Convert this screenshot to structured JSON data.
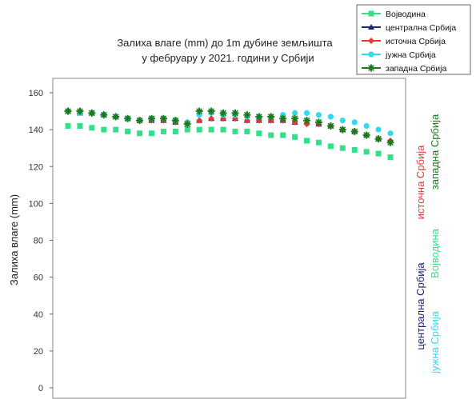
{
  "chart_data": {
    "type": "scatter",
    "title_line1": "Залиха влаге (mm) до 1m дубине земљишта",
    "title_line2": "у фебруару у 2021. години у Србији",
    "xlabel": "",
    "ylabel": "Залиха влаге (mm)",
    "ylim": [
      0,
      160
    ],
    "yticks": [
      0,
      20,
      40,
      60,
      80,
      100,
      120,
      140,
      160
    ],
    "x_days": 28,
    "grid": false,
    "legend_position": "top-right",
    "bands": [
      {
        "from": 0,
        "to": 30,
        "color": "#ff9a3c"
      },
      {
        "from": 30,
        "to": 55,
        "color": "#ffcc99"
      },
      {
        "from": 55,
        "to": 75,
        "color": "#ffffcc"
      },
      {
        "from": 75,
        "to": 105,
        "color": "#e6f0fc"
      },
      {
        "from": 105,
        "to": 150,
        "color": "#b5d7fb"
      },
      {
        "from": 150,
        "to": 160,
        "color": "#6aaaee"
      }
    ],
    "series": [
      {
        "name": "Војводина",
        "color": "#33e08a",
        "marker": "square",
        "values": [
          142,
          142,
          141,
          140,
          140,
          139,
          138,
          138,
          139,
          139,
          140,
          140,
          140,
          140,
          139,
          139,
          138,
          137,
          137,
          136,
          134,
          133,
          131,
          130,
          129,
          128,
          127,
          125
        ]
      },
      {
        "name": "централна Србија",
        "color": "#1a237e",
        "marker": "triangle",
        "values": [
          150,
          149,
          149,
          148,
          147,
          146,
          145,
          145,
          145,
          144,
          144,
          145,
          146,
          146,
          146,
          145,
          145,
          145,
          145,
          144,
          144,
          143,
          142,
          140,
          139,
          137,
          135,
          134
        ]
      },
      {
        "name": "источна Србија",
        "color": "#e53935",
        "marker": "diamond",
        "values": [
          150,
          149,
          149,
          148,
          147,
          146,
          145,
          145,
          145,
          144,
          144,
          145,
          146,
          146,
          146,
          145,
          145,
          145,
          145,
          144,
          143,
          143,
          142,
          140,
          139,
          137,
          135,
          134
        ]
      },
      {
        "name": "јужна Србија",
        "color": "#33d9ee",
        "marker": "circle",
        "values": [
          150,
          149,
          149,
          148,
          147,
          146,
          145,
          146,
          146,
          145,
          144,
          148,
          149,
          148,
          148,
          147,
          147,
          147,
          148,
          149,
          149,
          148,
          147,
          145,
          144,
          142,
          140,
          138
        ]
      },
      {
        "name": "западна Србија",
        "color": "#1b7a1b",
        "marker": "star",
        "values": [
          150,
          150,
          149,
          148,
          147,
          146,
          145,
          146,
          146,
          145,
          143,
          150,
          150,
          149,
          149,
          148,
          147,
          147,
          146,
          146,
          145,
          144,
          142,
          140,
          139,
          137,
          135,
          133
        ]
      }
    ],
    "side_labels": [
      {
        "text": "западна Србија",
        "color": "#1b7a1b"
      },
      {
        "text": "источна Србија",
        "color": "#e53935"
      },
      {
        "text": "Војводина",
        "color": "#33e08a"
      },
      {
        "text": "централна Србија",
        "color": "#1a237e"
      },
      {
        "text": "јужна Србија",
        "color": "#33d9ee"
      }
    ]
  }
}
